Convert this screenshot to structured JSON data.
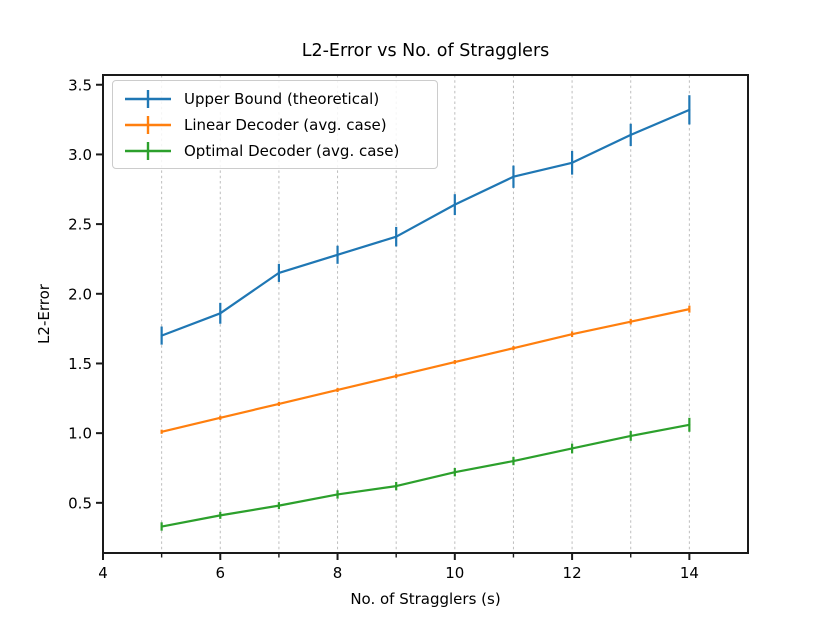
{
  "chart_data": {
    "type": "line",
    "title": "L2-Error vs No. of Stragglers",
    "xlabel": "No. of Stragglers (s)",
    "ylabel": "L2-Error",
    "x": [
      5,
      6,
      7,
      8,
      9,
      10,
      11,
      12,
      13,
      14
    ],
    "series": [
      {
        "name": "Upper Bound (theoretical)",
        "color": "#1f77b4",
        "values": [
          1.7,
          1.86,
          2.15,
          2.28,
          2.41,
          2.64,
          2.84,
          2.94,
          3.14,
          3.32
        ],
        "yerr": [
          0.065,
          0.075,
          0.065,
          0.065,
          0.07,
          0.075,
          0.08,
          0.085,
          0.08,
          0.105
        ]
      },
      {
        "name": "Linear Decoder (avg. case)",
        "color": "#ff7f0e",
        "values": [
          1.01,
          1.11,
          1.21,
          1.31,
          1.41,
          1.51,
          1.61,
          1.71,
          1.8,
          1.89
        ],
        "yerr": [
          0.015,
          0.015,
          0.015,
          0.015,
          0.015,
          0.015,
          0.015,
          0.02,
          0.02,
          0.025
        ]
      },
      {
        "name": "Optimal Decoder (avg. case)",
        "color": "#2ca02c",
        "values": [
          0.33,
          0.41,
          0.48,
          0.56,
          0.62,
          0.72,
          0.8,
          0.89,
          0.98,
          1.06
        ],
        "yerr": [
          0.03,
          0.025,
          0.025,
          0.03,
          0.03,
          0.03,
          0.03,
          0.035,
          0.035,
          0.05
        ]
      }
    ],
    "xlim": [
      4,
      15
    ],
    "ylim": [
      0.14,
      3.57
    ],
    "xticks": [
      4,
      6,
      8,
      10,
      12,
      14
    ],
    "xminorticks": [
      5,
      7,
      9,
      11,
      13
    ],
    "yticks": [
      0.5,
      1.0,
      1.5,
      2.0,
      2.5,
      3.0,
      3.5
    ],
    "grid_x": [
      5,
      6,
      7,
      8,
      9,
      10,
      11,
      12,
      13,
      14
    ],
    "grid": "vertical-dashed",
    "legend_position": "upper-left",
    "colors": {
      "spine": "#1a1a1a",
      "grid": "#bdbdbd",
      "text": "#000000",
      "legend_border": "#cccccc"
    }
  }
}
